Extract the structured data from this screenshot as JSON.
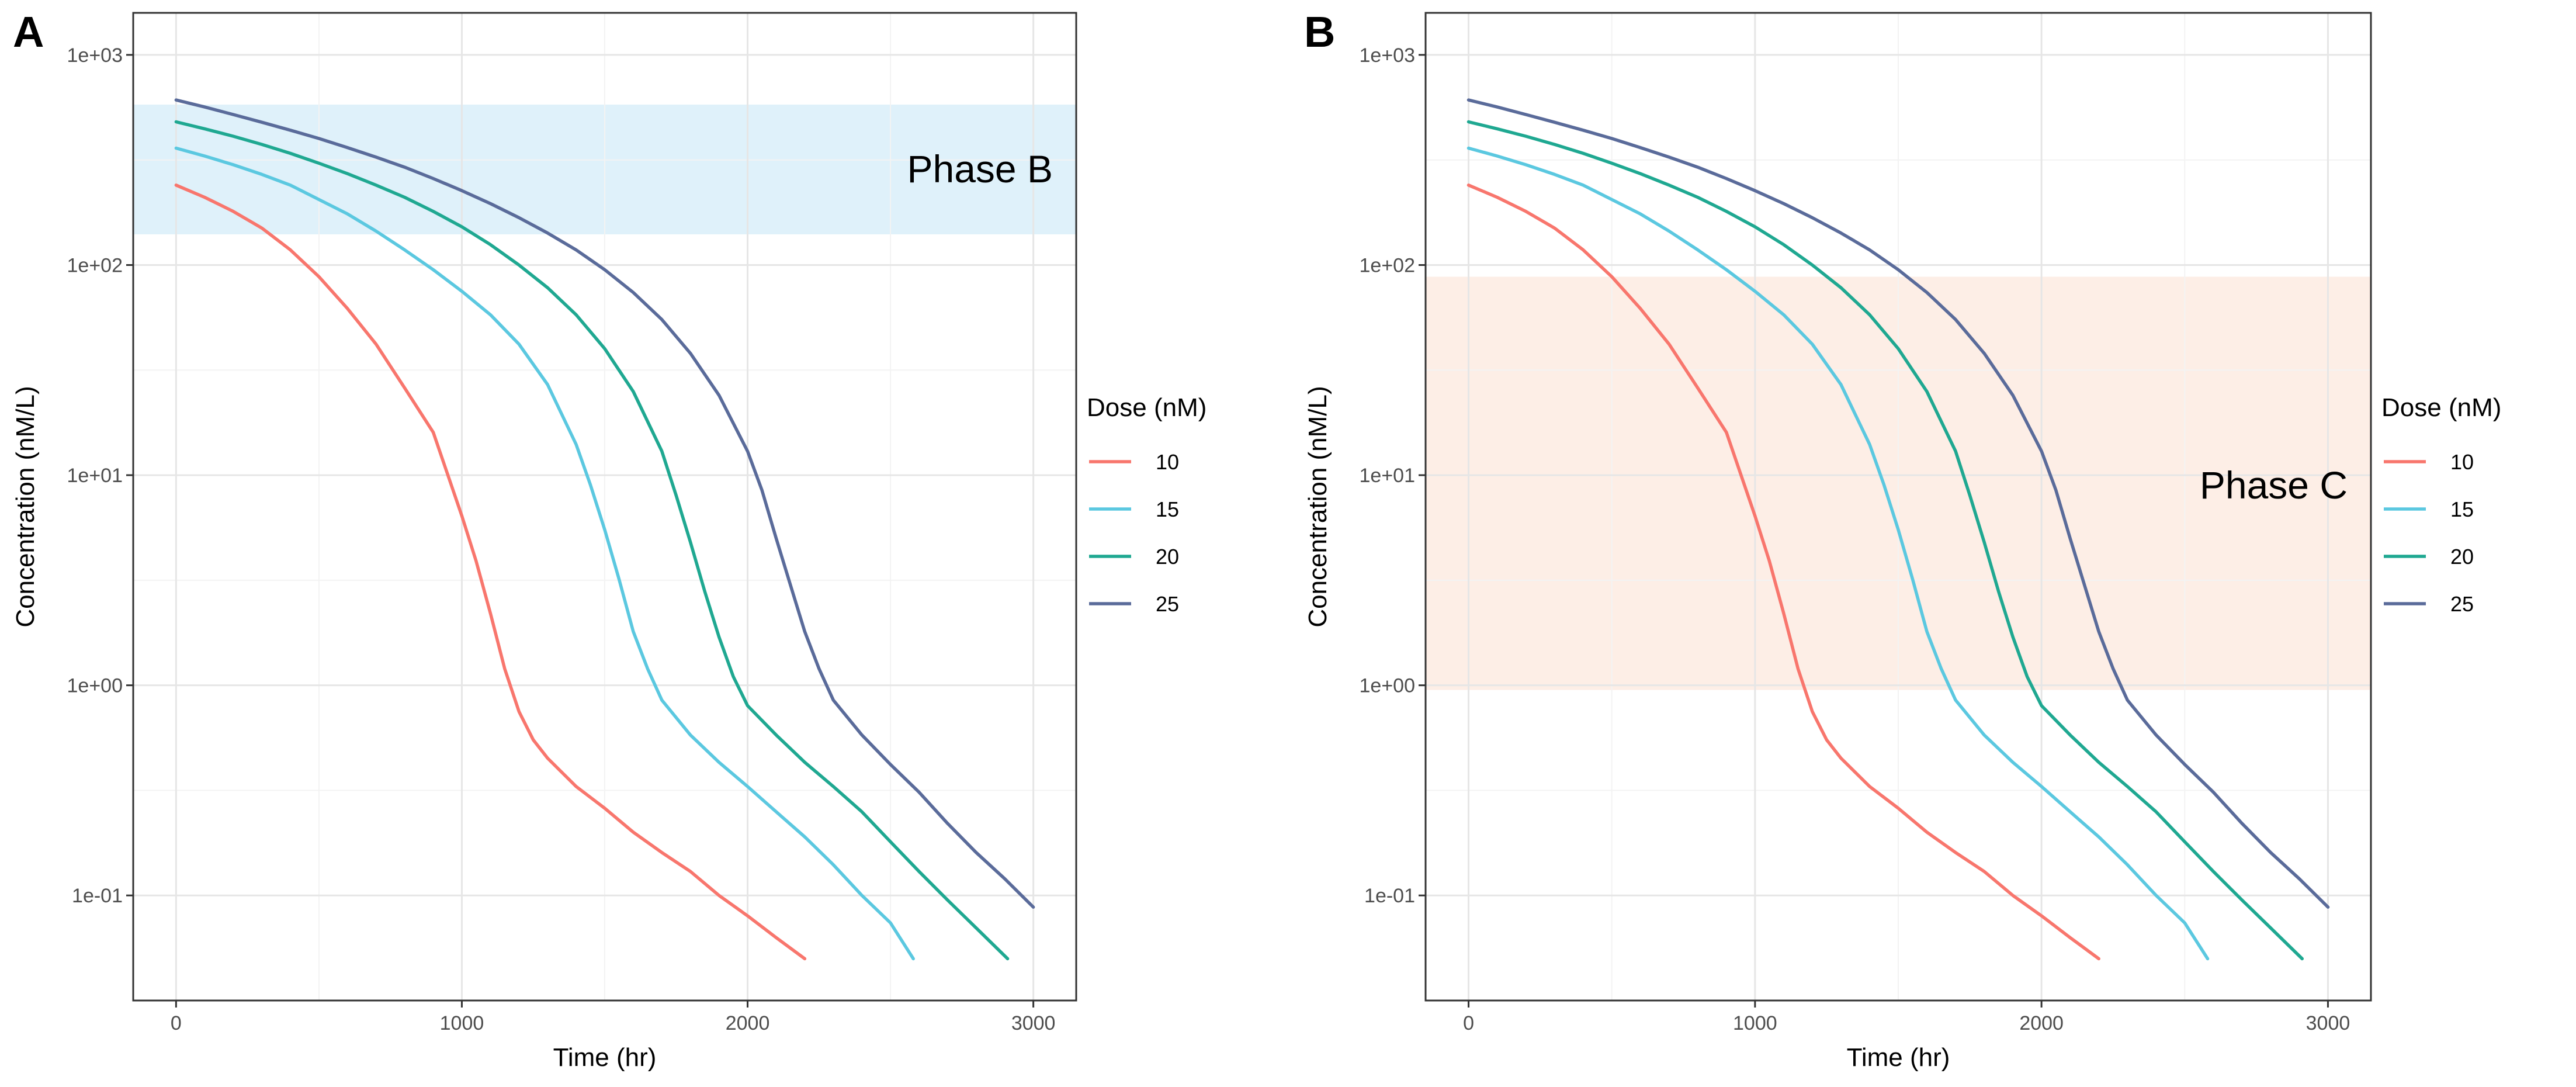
{
  "colors": {
    "series_10": "#F8766D",
    "series_15": "#5BC8E0",
    "series_20": "#1FA891",
    "series_25": "#5A6B9A",
    "band_phase_b": "#DFF1FA",
    "band_phase_c": "#FDEEE6"
  },
  "chart_data": [
    {
      "panel": "A",
      "type": "line",
      "title": "",
      "xlabel": "Time (hr)",
      "ylabel": "Concentration (nM/L)",
      "xlim": [
        -150,
        3150
      ],
      "ylim_log10": [
        -1.5,
        3.2
      ],
      "y_scale": "log10",
      "x_ticks": [
        0,
        1000,
        2000,
        3000
      ],
      "x_tick_labels": [
        "0",
        "1000",
        "2000",
        "3000"
      ],
      "y_ticks": [
        0.1,
        1,
        10,
        100,
        1000
      ],
      "y_tick_labels": [
        "1e-01",
        "1e+00",
        "1e+01",
        "1e+02",
        "1e+03"
      ],
      "grid": true,
      "legend": {
        "title": "Dose (nM)",
        "position": "right",
        "labels": [
          "10",
          "15",
          "20",
          "25"
        ]
      },
      "band": {
        "label": "Phase B",
        "y_range": [
          140,
          580
        ],
        "color_key": "band_phase_b"
      },
      "series": [
        {
          "name": "10",
          "color_key": "series_10",
          "x": [
            0,
            100,
            200,
            300,
            400,
            500,
            600,
            700,
            800,
            900,
            1000,
            1050,
            1100,
            1150,
            1200,
            1250,
            1300,
            1400,
            1500,
            1600,
            1700,
            1800,
            1900,
            2000,
            2100,
            2200
          ],
          "y": [
            240,
            210,
            180,
            150,
            118,
            88,
            62,
            42,
            26,
            16,
            6.4,
            3.9,
            2.2,
            1.2,
            0.75,
            0.55,
            0.45,
            0.33,
            0.26,
            0.2,
            0.16,
            0.13,
            0.1,
            0.08,
            0.063,
            0.05
          ]
        },
        {
          "name": "15",
          "color_key": "series_15",
          "x": [
            0,
            100,
            200,
            300,
            400,
            500,
            600,
            700,
            800,
            900,
            1000,
            1100,
            1200,
            1300,
            1400,
            1450,
            1500,
            1550,
            1600,
            1650,
            1700,
            1800,
            1900,
            2000,
            2100,
            2200,
            2300,
            2400,
            2500,
            2580
          ],
          "y": [
            360,
            330,
            300,
            270,
            240,
            205,
            175,
            145,
            118,
            95,
            75,
            58,
            42,
            27,
            14,
            9,
            5.5,
            3.2,
            1.8,
            1.2,
            0.85,
            0.58,
            0.43,
            0.33,
            0.25,
            0.19,
            0.14,
            0.1,
            0.074,
            0.05
          ]
        },
        {
          "name": "20",
          "color_key": "series_20",
          "x": [
            0,
            100,
            200,
            300,
            400,
            500,
            600,
            700,
            800,
            900,
            1000,
            1100,
            1200,
            1300,
            1400,
            1500,
            1600,
            1700,
            1750,
            1800,
            1850,
            1900,
            1950,
            2000,
            2100,
            2200,
            2300,
            2400,
            2500,
            2600,
            2700,
            2800,
            2910
          ],
          "y": [
            480,
            445,
            410,
            375,
            340,
            305,
            272,
            240,
            210,
            180,
            152,
            125,
            100,
            78,
            58,
            40,
            25,
            13,
            8,
            4.8,
            2.8,
            1.7,
            1.1,
            0.8,
            0.58,
            0.43,
            0.33,
            0.25,
            0.18,
            0.13,
            0.095,
            0.07,
            0.05
          ]
        },
        {
          "name": "25",
          "color_key": "series_25",
          "x": [
            0,
            100,
            200,
            300,
            400,
            500,
            600,
            700,
            800,
            900,
            1000,
            1100,
            1200,
            1300,
            1400,
            1500,
            1600,
            1700,
            1800,
            1900,
            2000,
            2050,
            2100,
            2150,
            2200,
            2250,
            2300,
            2400,
            2500,
            2600,
            2700,
            2800,
            2900,
            3000
          ],
          "y": [
            610,
            565,
            520,
            478,
            438,
            400,
            362,
            326,
            292,
            258,
            226,
            196,
            168,
            142,
            118,
            95,
            74,
            55,
            38,
            24,
            13,
            8.5,
            5,
            3,
            1.8,
            1.2,
            0.85,
            0.58,
            0.42,
            0.31,
            0.22,
            0.16,
            0.12,
            0.088
          ]
        }
      ]
    },
    {
      "panel": "B",
      "type": "line",
      "title": "",
      "xlabel": "Time (hr)",
      "ylabel": "Concentration (nM/L)",
      "xlim": [
        -150,
        3150
      ],
      "ylim_log10": [
        -1.5,
        3.2
      ],
      "y_scale": "log10",
      "x_ticks": [
        0,
        1000,
        2000,
        3000
      ],
      "x_tick_labels": [
        "0",
        "1000",
        "2000",
        "3000"
      ],
      "y_ticks": [
        0.1,
        1,
        10,
        100,
        1000
      ],
      "y_tick_labels": [
        "1e-01",
        "1e+00",
        "1e+01",
        "1e+02",
        "1e+03"
      ],
      "grid": true,
      "legend": {
        "title": "Dose (nM)",
        "position": "right",
        "labels": [
          "10",
          "15",
          "20",
          "25"
        ]
      },
      "band": {
        "label": "Phase C",
        "y_range": [
          0.95,
          88
        ],
        "color_key": "band_phase_c"
      },
      "series": [
        {
          "name": "10",
          "color_key": "series_10",
          "x": [
            0,
            100,
            200,
            300,
            400,
            500,
            600,
            700,
            800,
            900,
            1000,
            1050,
            1100,
            1150,
            1200,
            1250,
            1300,
            1400,
            1500,
            1600,
            1700,
            1800,
            1900,
            2000,
            2100,
            2200
          ],
          "y": [
            240,
            210,
            180,
            150,
            118,
            88,
            62,
            42,
            26,
            16,
            6.4,
            3.9,
            2.2,
            1.2,
            0.75,
            0.55,
            0.45,
            0.33,
            0.26,
            0.2,
            0.16,
            0.13,
            0.1,
            0.08,
            0.063,
            0.05
          ]
        },
        {
          "name": "15",
          "color_key": "series_15",
          "x": [
            0,
            100,
            200,
            300,
            400,
            500,
            600,
            700,
            800,
            900,
            1000,
            1100,
            1200,
            1300,
            1400,
            1450,
            1500,
            1550,
            1600,
            1650,
            1700,
            1800,
            1900,
            2000,
            2100,
            2200,
            2300,
            2400,
            2500,
            2580
          ],
          "y": [
            360,
            330,
            300,
            270,
            240,
            205,
            175,
            145,
            118,
            95,
            75,
            58,
            42,
            27,
            14,
            9,
            5.5,
            3.2,
            1.8,
            1.2,
            0.85,
            0.58,
            0.43,
            0.33,
            0.25,
            0.19,
            0.14,
            0.1,
            0.074,
            0.05
          ]
        },
        {
          "name": "20",
          "color_key": "series_20",
          "x": [
            0,
            100,
            200,
            300,
            400,
            500,
            600,
            700,
            800,
            900,
            1000,
            1100,
            1200,
            1300,
            1400,
            1500,
            1600,
            1700,
            1750,
            1800,
            1850,
            1900,
            1950,
            2000,
            2100,
            2200,
            2300,
            2400,
            2500,
            2600,
            2700,
            2800,
            2910
          ],
          "y": [
            480,
            445,
            410,
            375,
            340,
            305,
            272,
            240,
            210,
            180,
            152,
            125,
            100,
            78,
            58,
            40,
            25,
            13,
            8,
            4.8,
            2.8,
            1.7,
            1.1,
            0.8,
            0.58,
            0.43,
            0.33,
            0.25,
            0.18,
            0.13,
            0.095,
            0.07,
            0.05
          ]
        },
        {
          "name": "25",
          "color_key": "series_25",
          "x": [
            0,
            100,
            200,
            300,
            400,
            500,
            600,
            700,
            800,
            900,
            1000,
            1100,
            1200,
            1300,
            1400,
            1500,
            1600,
            1700,
            1800,
            1900,
            2000,
            2050,
            2100,
            2150,
            2200,
            2250,
            2300,
            2400,
            2500,
            2600,
            2700,
            2800,
            2900,
            3000
          ],
          "y": [
            610,
            565,
            520,
            478,
            438,
            400,
            362,
            326,
            292,
            258,
            226,
            196,
            168,
            142,
            118,
            95,
            74,
            55,
            38,
            24,
            13,
            8.5,
            5,
            3,
            1.8,
            1.2,
            0.85,
            0.58,
            0.42,
            0.31,
            0.22,
            0.16,
            0.12,
            0.088
          ]
        }
      ]
    }
  ]
}
